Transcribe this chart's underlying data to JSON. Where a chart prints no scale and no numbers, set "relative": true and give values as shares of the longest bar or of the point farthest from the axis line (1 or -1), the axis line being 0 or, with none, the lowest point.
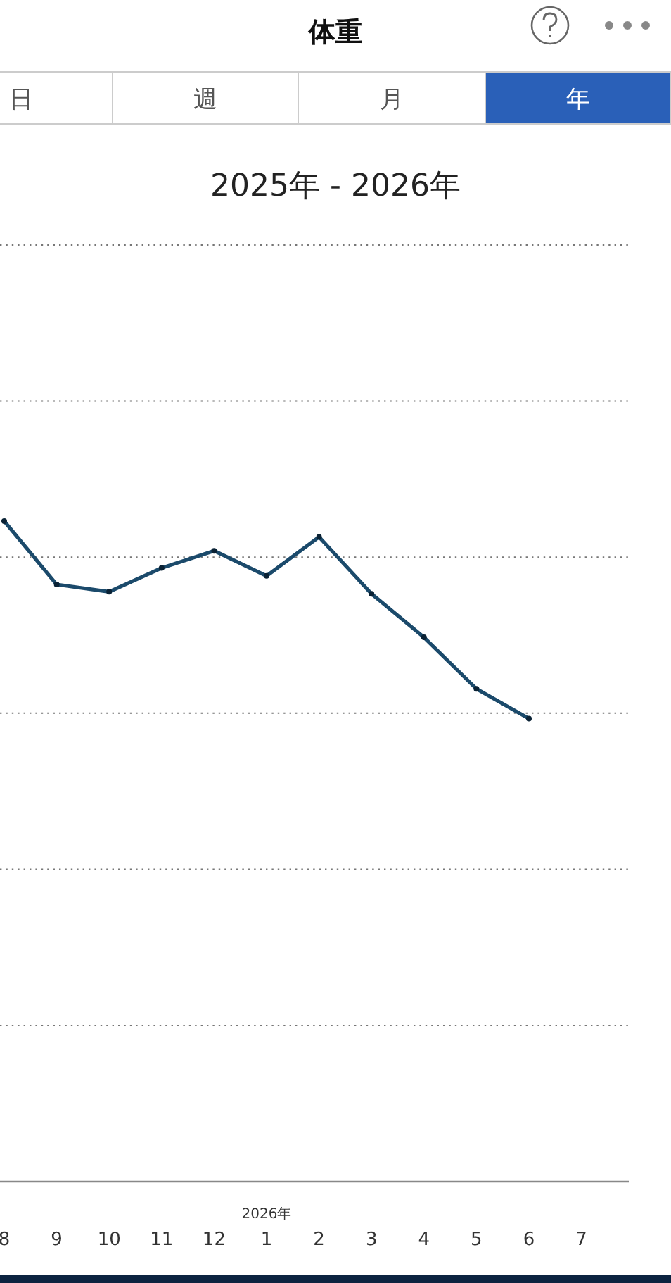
{
  "chart_data": {
    "type": "line",
    "title": "体重",
    "subtitle": "2025年 - 2026年",
    "annotations": [
      "日",
      "週",
      "月",
      "年",
      "2026年"
    ],
    "categories": [
      "8",
      "9",
      "10",
      "11",
      "12",
      "1",
      "2",
      "3",
      "4",
      "5",
      "6",
      "7"
    ],
    "relative": true,
    "grid": true,
    "marker": "circle",
    "line_style": "solid",
    "series": [
      {
        "color": "#1b4a6b",
        "values": [
          1.0,
          0.904,
          0.893,
          0.929,
          0.955,
          0.917,
          0.976,
          0.89,
          0.824,
          0.746,
          0.701,
          null
        ]
      }
    ]
  }
}
